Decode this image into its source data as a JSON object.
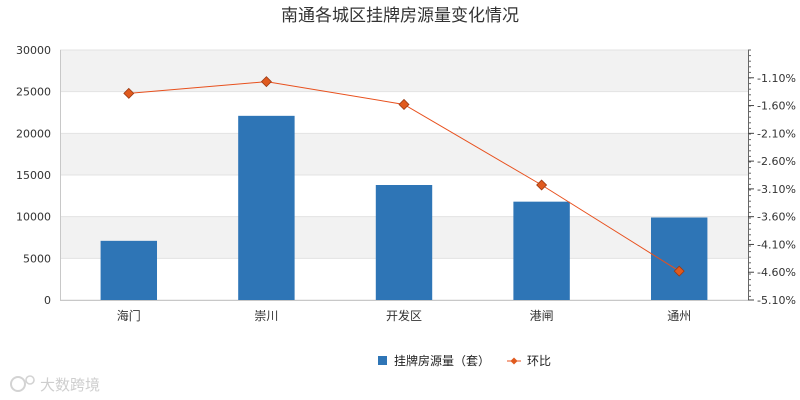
{
  "chart_data": {
    "type": "bar",
    "title": "南通各城区挂牌房源量变化情况",
    "categories": [
      "海门",
      "崇川",
      "开发区",
      "港闸",
      "通州"
    ],
    "series": [
      {
        "name": "挂牌房源量（套）",
        "type": "bar",
        "axis": "left",
        "color": "#2e75b6",
        "values": [
          7100,
          22100,
          13800,
          11800,
          9900
        ]
      },
      {
        "name": "环比",
        "type": "line",
        "axis": "right",
        "color": "#e8501d",
        "marker_color": "#e05a1e",
        "values": [
          -1.38,
          -1.17,
          -1.58,
          -3.03,
          -4.58
        ]
      }
    ],
    "y_left": {
      "ylim": [
        0,
        30000
      ],
      "ticks": [
        "0",
        "5000",
        "10000",
        "15000",
        "20000",
        "25000",
        "30000"
      ]
    },
    "y_right": {
      "ylim": [
        -5.1,
        -0.6
      ],
      "ticks": [
        "-1.10%",
        "-1.60%",
        "-2.10%",
        "-2.60%",
        "-3.10%",
        "-3.60%",
        "-4.10%",
        "-4.60%",
        "-5.10%"
      ],
      "tick_values": [
        -1.1,
        -1.6,
        -2.1,
        -2.6,
        -3.1,
        -3.6,
        -4.1,
        -4.6,
        -5.1
      ]
    },
    "grid": true,
    "legend_position": "bottom-center"
  },
  "watermark": {
    "text": "大数跨境"
  }
}
